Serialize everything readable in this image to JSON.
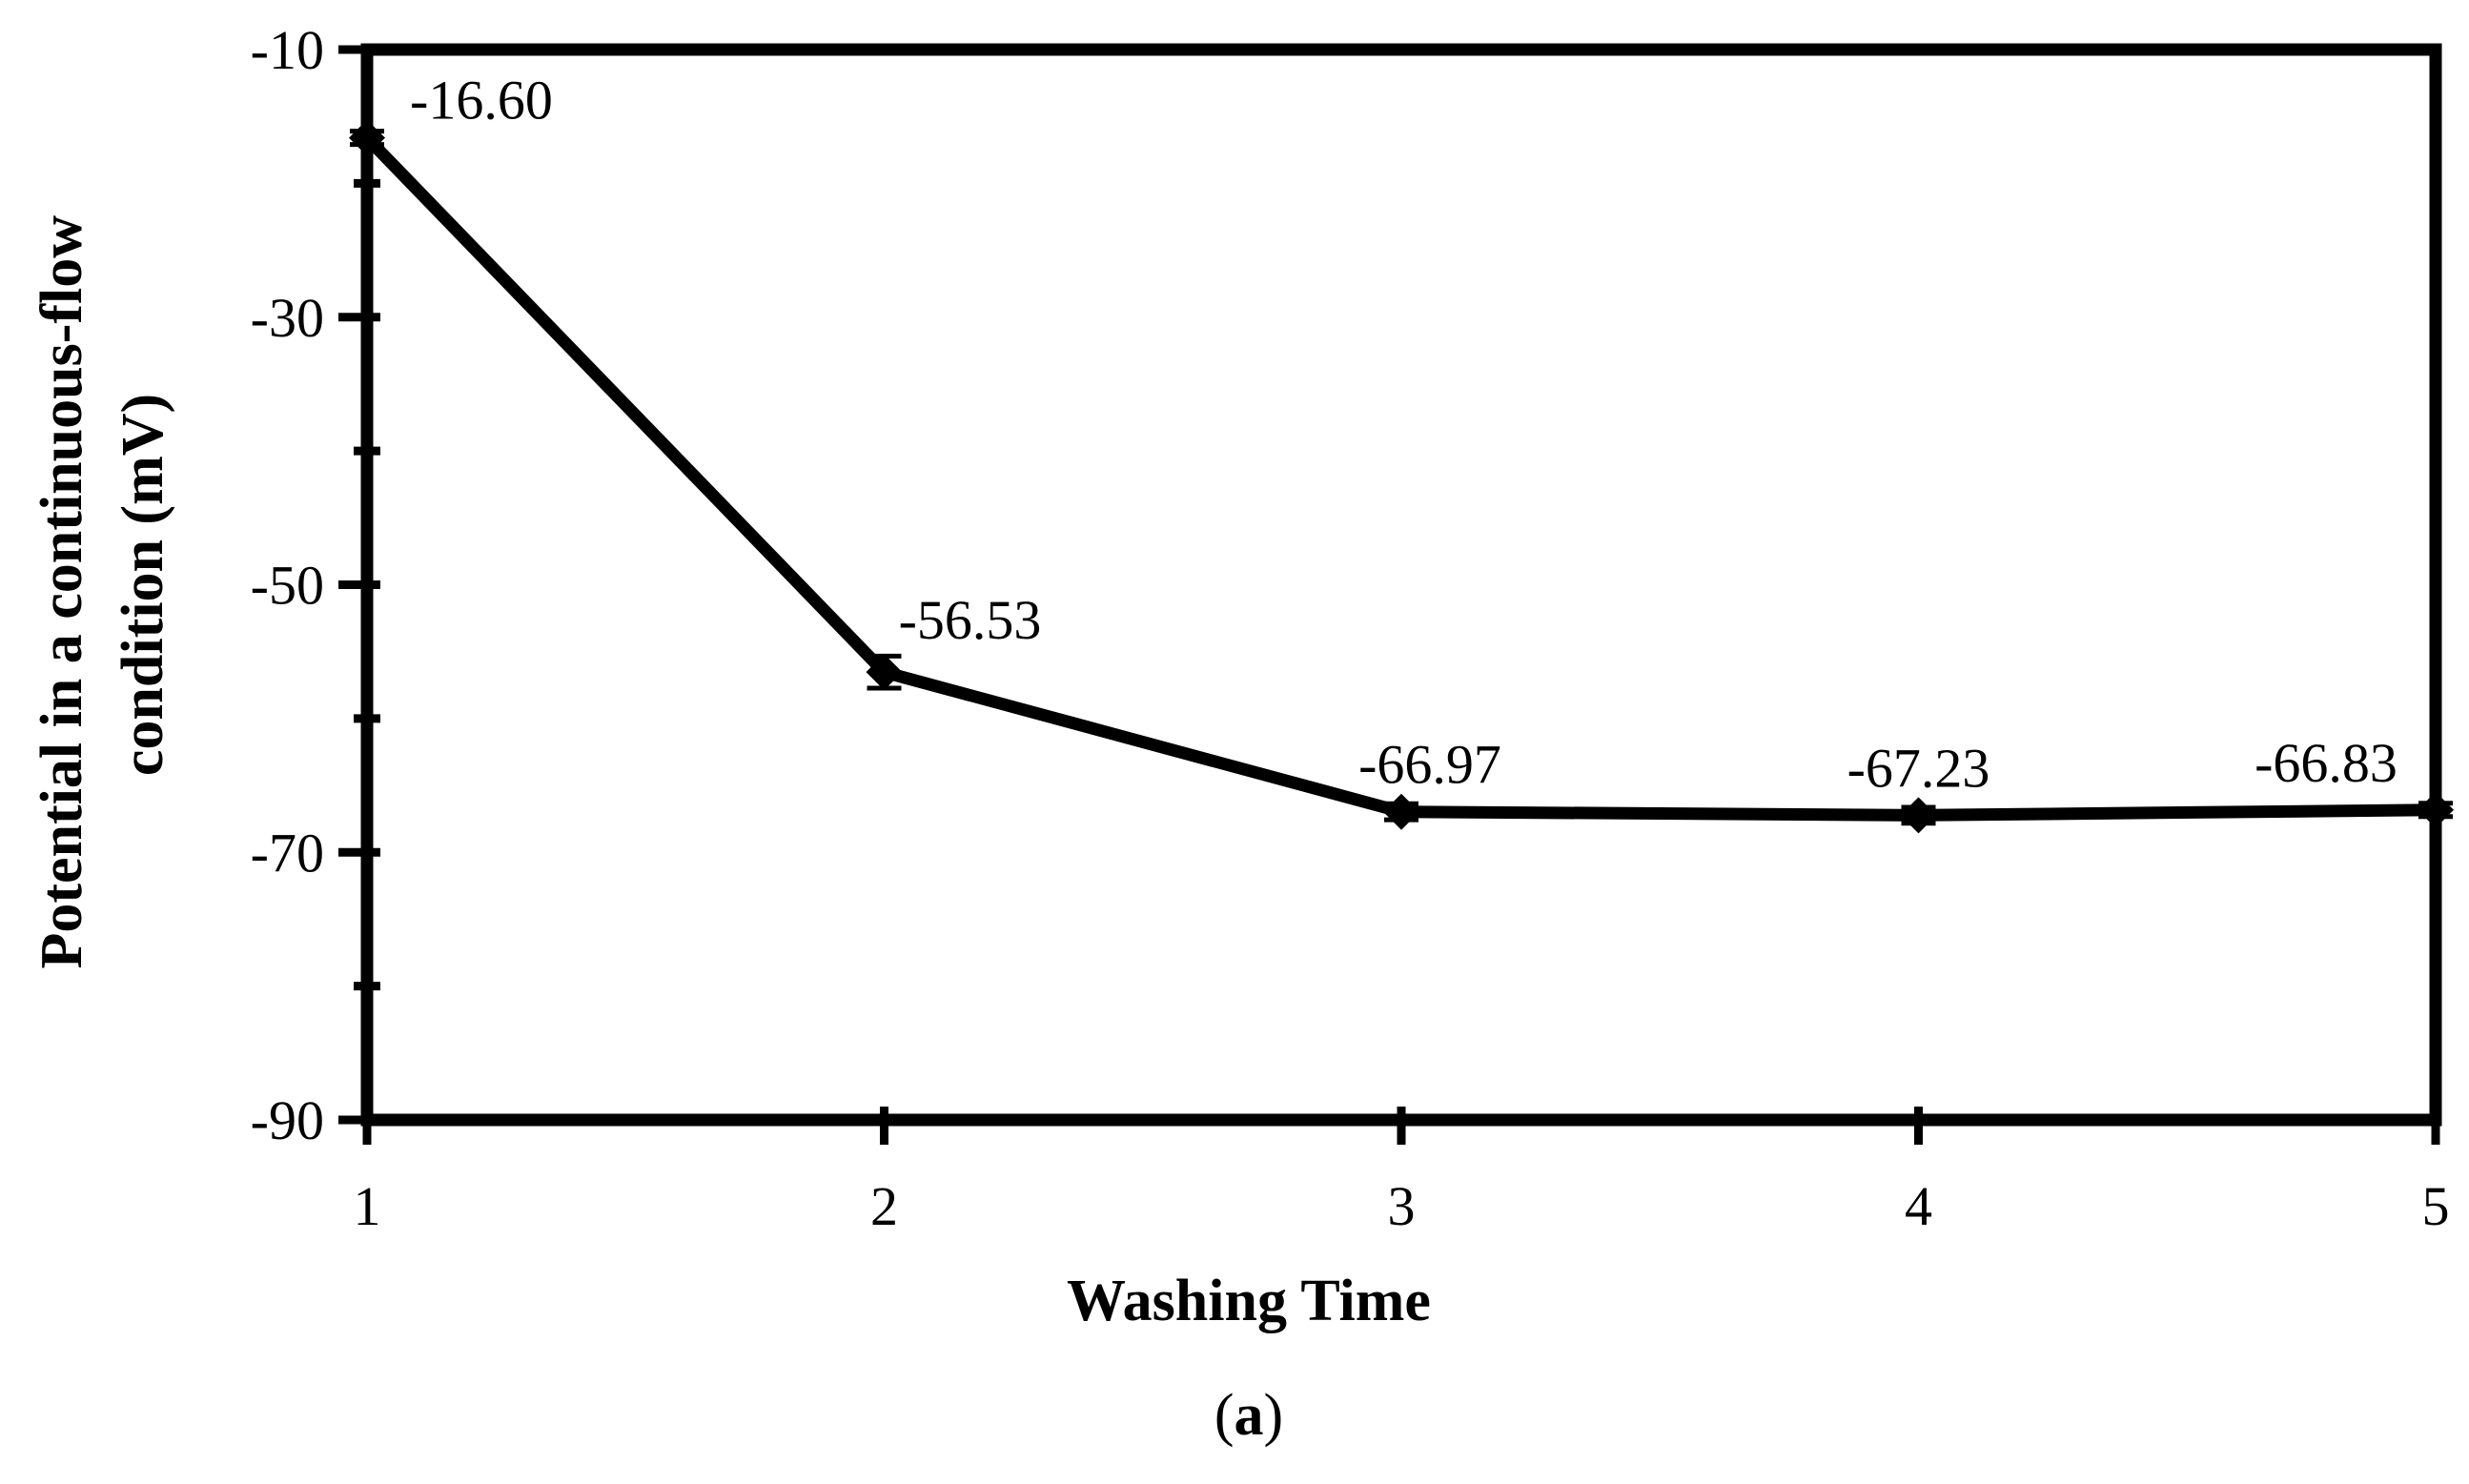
{
  "chart_data": {
    "type": "line",
    "xlabel": "Washing Time",
    "ylabel_lines": [
      "Potential in a continuous-flow",
      "condition (mV)"
    ],
    "caption_open": "(",
    "caption_letter": "a",
    "caption_close": ")",
    "x": [
      1,
      2,
      3,
      4,
      5
    ],
    "x_tick_labels": [
      "1",
      "2",
      "3",
      "4",
      "5"
    ],
    "xlim": [
      1,
      5
    ],
    "ylim": [
      -90,
      -10
    ],
    "y_major_ticks": [
      -10,
      -30,
      -50,
      -70,
      -90
    ],
    "y_tick_labels": [
      "-10",
      "-30",
      "-50",
      "-70",
      "-90"
    ],
    "y_minor_ticks": [
      -20,
      -40,
      -60,
      -80
    ],
    "series": [
      {
        "values": [
          -16.6,
          -56.53,
          -66.97,
          -67.23,
          -66.83
        ],
        "error": [
          0.5,
          1.2,
          0.6,
          0.6,
          0.5
        ],
        "data_labels": [
          "-16.60",
          "-56.53",
          "-66.97",
          "-67.23",
          "-66.83"
        ],
        "color": "#000000",
        "marker": "diamond"
      }
    ],
    "grid": false,
    "legend": "none"
  }
}
